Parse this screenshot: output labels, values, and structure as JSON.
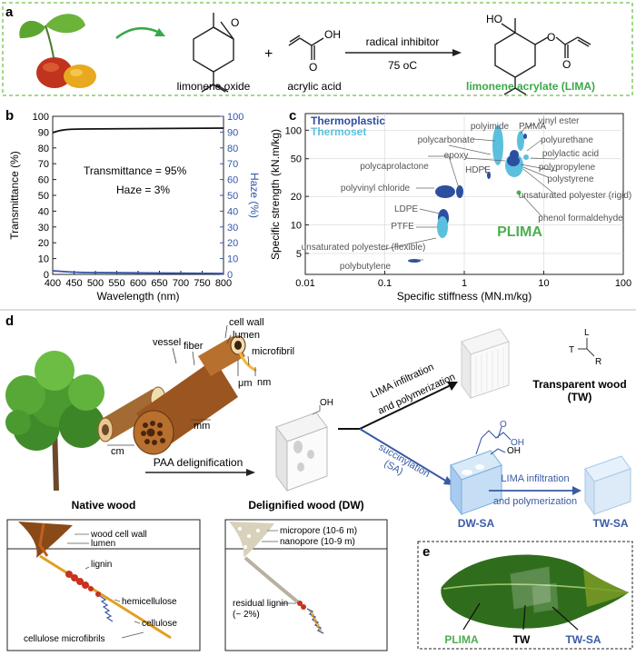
{
  "panel_labels": {
    "a": "a",
    "b": "b",
    "c": "c",
    "d": "d",
    "e": "e"
  },
  "panel_a": {
    "species": [
      "limonene oxide",
      "acrylic acid",
      "limonene acrylate (LIMA)"
    ],
    "plus": "+",
    "conditions": [
      "radical inhibitor",
      "75 oC"
    ],
    "atoms": {
      "ring_o": "O",
      "oh": "OH",
      "ho": "HO",
      "carbonyl_o": "O",
      "ester_o": "O"
    }
  },
  "panel_b": {
    "annotations": [
      "Transmittance = 95%",
      "Haze = 3%"
    ],
    "xlabel": "Wavelength (nm)",
    "ylabel_left": "Transmittance (%)",
    "ylabel_right": "Haze (%)",
    "xticks": [
      "400",
      "450",
      "500",
      "550",
      "600",
      "650",
      "700",
      "750",
      "800"
    ],
    "yticks": [
      "0",
      "10",
      "20",
      "30",
      "40",
      "50",
      "60",
      "70",
      "80",
      "90",
      "100"
    ],
    "colors": {
      "transmittance": "#111111",
      "haze": "#3355aa"
    }
  },
  "panel_c": {
    "legend": [
      "Thermoplastic",
      "Thermoset"
    ],
    "xlabel": "Specific stiffness (MN.m/kg)",
    "ylabel": "Specific strength (kN.m/kg)",
    "xticks": [
      "0.01",
      "0.1",
      "1",
      "10",
      "100"
    ],
    "yticks": [
      "5",
      "10",
      "20",
      "50",
      "100"
    ],
    "material_labels": [
      "polyimide",
      "PMMA",
      "vinyl ester",
      "polycarbonate",
      "polyurethane",
      "epoxy",
      "polylactic acid",
      "HDPE",
      "polycaprolactone",
      "polypropylene",
      "polystyrene",
      "polyvinyl chloride",
      "unsaturated polyester (rigid)",
      "LDPE",
      "phenol formaldehyde",
      "PTFE",
      "unsaturated polyester (flexible)",
      "polybutylene"
    ],
    "highlight": "PLIMA",
    "colors": {
      "thermoplastic": "#2d4fa0",
      "thermoset": "#5bc0de",
      "plima": "#4caf50"
    }
  },
  "panel_d": {
    "hierarchy_labels": [
      "cell wall",
      "lumen",
      "vessel",
      "fiber",
      "microfibril",
      "μm",
      "nm",
      "mm",
      "cm"
    ],
    "process": {
      "paa": "PAA delignification",
      "lima_top": [
        "LIMA infiltration",
        "and polymerization"
      ],
      "succ": [
        "succinylation",
        "(SA)"
      ],
      "lima_bottom": [
        "LIMA infiltration",
        "and polymerization"
      ]
    },
    "products": {
      "tw_line1": "Transparent wood",
      "tw_line2": "(TW)",
      "dwsa": "DW-SA",
      "twsa": "TW-SA"
    },
    "axes": [
      "L",
      "T",
      "R"
    ],
    "chem": {
      "oh": "OH",
      "o": "O"
    },
    "native": {
      "title": "Native wood",
      "labels": [
        "wood cell wall",
        "lumen",
        "lignin",
        "hemicellulose",
        "cellulose",
        "cellulose microfibrils"
      ]
    },
    "delig": {
      "title": "Delignified wood (DW)",
      "labels": [
        "micropore (10-6 m)",
        "nanopore (10-9 m)",
        "residual lignin",
        "(~ 2%)"
      ]
    }
  },
  "panel_e": {
    "labels": [
      "PLIMA",
      "TW",
      "TW-SA"
    ]
  }
}
